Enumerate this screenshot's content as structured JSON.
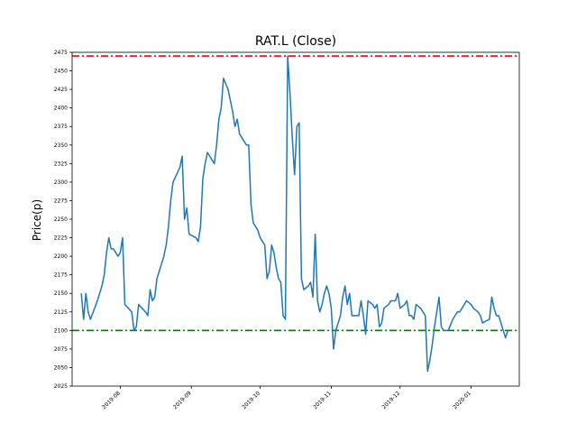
{
  "chart_data": {
    "type": "line",
    "title": "RAT.L (Close)",
    "xlabel": "",
    "ylabel": "Price(p)",
    "xlim": [
      "2019-07-11",
      "2020-01-22"
    ],
    "ylim": [
      2025,
      2475
    ],
    "x_ticks": [
      "2019-08",
      "2019-09",
      "2019-10",
      "2019-11",
      "2019-12",
      "2020-01"
    ],
    "y_ticks": [
      2025,
      2050,
      2075,
      2100,
      2125,
      2150,
      2175,
      2200,
      2225,
      2250,
      2275,
      2300,
      2325,
      2350,
      2375,
      2400,
      2425,
      2450,
      2475
    ],
    "grid": false,
    "hlines": [
      {
        "value": 2470,
        "color": "#ff0000",
        "style": "dashdot"
      },
      {
        "value": 2100,
        "color": "#008000",
        "style": "dashdot"
      }
    ],
    "series": [
      {
        "color": "#1f77b4",
        "points": [
          [
            "2019-07-15",
            2150
          ],
          [
            "2019-07-16",
            2115
          ],
          [
            "2019-07-17",
            2150
          ],
          [
            "2019-07-18",
            2125
          ],
          [
            "2019-07-19",
            2115
          ],
          [
            "2019-07-22",
            2140
          ],
          [
            "2019-07-23",
            2150
          ],
          [
            "2019-07-24",
            2160
          ],
          [
            "2019-07-25",
            2175
          ],
          [
            "2019-07-26",
            2205
          ],
          [
            "2019-07-27",
            2225
          ],
          [
            "2019-07-28",
            2210
          ],
          [
            "2019-07-29",
            2210
          ],
          [
            "2019-07-30",
            2205
          ],
          [
            "2019-07-31",
            2200
          ],
          [
            "2019-08-01",
            2205
          ],
          [
            "2019-08-02",
            2225
          ],
          [
            "2019-08-03",
            2135
          ],
          [
            "2019-08-06",
            2125
          ],
          [
            "2019-08-07",
            2100
          ],
          [
            "2019-08-08",
            2105
          ],
          [
            "2019-08-09",
            2135
          ],
          [
            "2019-08-12",
            2125
          ],
          [
            "2019-08-13",
            2120
          ],
          [
            "2019-08-14",
            2155
          ],
          [
            "2019-08-15",
            2140
          ],
          [
            "2019-08-16",
            2145
          ],
          [
            "2019-08-17",
            2170
          ],
          [
            "2019-08-19",
            2190
          ],
          [
            "2019-08-20",
            2200
          ],
          [
            "2019-08-21",
            2215
          ],
          [
            "2019-08-22",
            2240
          ],
          [
            "2019-08-23",
            2275
          ],
          [
            "2019-08-24",
            2300
          ],
          [
            "2019-08-27",
            2320
          ],
          [
            "2019-08-28",
            2335
          ],
          [
            "2019-08-29",
            2250
          ],
          [
            "2019-08-30",
            2265
          ],
          [
            "2019-08-31",
            2230
          ],
          [
            "2019-09-03",
            2225
          ],
          [
            "2019-09-04",
            2220
          ],
          [
            "2019-09-05",
            2240
          ],
          [
            "2019-09-06",
            2305
          ],
          [
            "2019-09-07",
            2325
          ],
          [
            "2019-09-08",
            2340
          ],
          [
            "2019-09-10",
            2330
          ],
          [
            "2019-09-11",
            2325
          ],
          [
            "2019-09-12",
            2350
          ],
          [
            "2019-09-13",
            2385
          ],
          [
            "2019-09-14",
            2400
          ],
          [
            "2019-09-15",
            2440
          ],
          [
            "2019-09-17",
            2425
          ],
          [
            "2019-09-18",
            2410
          ],
          [
            "2019-09-19",
            2395
          ],
          [
            "2019-09-20",
            2375
          ],
          [
            "2019-09-21",
            2385
          ],
          [
            "2019-09-22",
            2365
          ],
          [
            "2019-09-24",
            2355
          ],
          [
            "2019-09-25",
            2350
          ],
          [
            "2019-09-26",
            2350
          ],
          [
            "2019-09-27",
            2270
          ],
          [
            "2019-09-28",
            2245
          ],
          [
            "2019-09-30",
            2235
          ],
          [
            "2019-10-01",
            2225
          ],
          [
            "2019-10-02",
            2220
          ],
          [
            "2019-10-03",
            2215
          ],
          [
            "2019-10-04",
            2170
          ],
          [
            "2019-10-05",
            2180
          ],
          [
            "2019-10-06",
            2215
          ],
          [
            "2019-10-07",
            2205
          ],
          [
            "2019-10-08",
            2185
          ],
          [
            "2019-10-09",
            2170
          ],
          [
            "2019-10-10",
            2165
          ],
          [
            "2019-10-11",
            2120
          ],
          [
            "2019-10-12",
            2115
          ],
          [
            "2019-10-13",
            2470
          ],
          [
            "2019-10-14",
            2420
          ],
          [
            "2019-10-15",
            2360
          ],
          [
            "2019-10-16",
            2310
          ],
          [
            "2019-10-17",
            2375
          ],
          [
            "2019-10-18",
            2380
          ],
          [
            "2019-10-19",
            2170
          ],
          [
            "2019-10-20",
            2155
          ],
          [
            "2019-10-22",
            2160
          ],
          [
            "2019-10-23",
            2165
          ],
          [
            "2019-10-24",
            2145
          ],
          [
            "2019-10-25",
            2230
          ],
          [
            "2019-10-26",
            2140
          ],
          [
            "2019-10-27",
            2125
          ],
          [
            "2019-10-28",
            2135
          ],
          [
            "2019-10-29",
            2150
          ],
          [
            "2019-10-30",
            2160
          ],
          [
            "2019-10-31",
            2150
          ],
          [
            "2019-11-01",
            2130
          ],
          [
            "2019-11-02",
            2075
          ],
          [
            "2019-11-03",
            2100
          ],
          [
            "2019-11-05",
            2120
          ],
          [
            "2019-11-06",
            2145
          ],
          [
            "2019-11-07",
            2160
          ],
          [
            "2019-11-08",
            2135
          ],
          [
            "2019-11-09",
            2150
          ],
          [
            "2019-11-10",
            2120
          ],
          [
            "2019-11-12",
            2120
          ],
          [
            "2019-11-13",
            2120
          ],
          [
            "2019-11-14",
            2140
          ],
          [
            "2019-11-15",
            2120
          ],
          [
            "2019-11-16",
            2095
          ],
          [
            "2019-11-17",
            2140
          ],
          [
            "2019-11-19",
            2135
          ],
          [
            "2019-11-20",
            2130
          ],
          [
            "2019-11-21",
            2135
          ],
          [
            "2019-11-22",
            2105
          ],
          [
            "2019-11-23",
            2110
          ],
          [
            "2019-11-24",
            2130
          ],
          [
            "2019-11-26",
            2135
          ],
          [
            "2019-11-27",
            2140
          ],
          [
            "2019-11-28",
            2140
          ],
          [
            "2019-11-29",
            2140
          ],
          [
            "2019-11-30",
            2150
          ],
          [
            "2019-12-01",
            2130
          ],
          [
            "2019-12-03",
            2135
          ],
          [
            "2019-12-04",
            2140
          ],
          [
            "2019-12-05",
            2120
          ],
          [
            "2019-12-06",
            2120
          ],
          [
            "2019-12-07",
            2115
          ],
          [
            "2019-12-08",
            2135
          ],
          [
            "2019-12-10",
            2130
          ],
          [
            "2019-12-11",
            2125
          ],
          [
            "2019-12-12",
            2120
          ],
          [
            "2019-12-13",
            2045
          ],
          [
            "2019-12-14",
            2060
          ],
          [
            "2019-12-15",
            2080
          ],
          [
            "2019-12-16",
            2105
          ],
          [
            "2019-12-17",
            2125
          ],
          [
            "2019-12-18",
            2145
          ],
          [
            "2019-12-19",
            2105
          ],
          [
            "2019-12-20",
            2100
          ],
          [
            "2019-12-22",
            2100
          ],
          [
            "2019-12-24",
            2115
          ],
          [
            "2019-12-26",
            2125
          ],
          [
            "2019-12-27",
            2125
          ],
          [
            "2019-12-28",
            2130
          ],
          [
            "2019-12-30",
            2140
          ],
          [
            "2020-01-01",
            2135
          ],
          [
            "2020-01-02",
            2130
          ],
          [
            "2020-01-04",
            2125
          ],
          [
            "2020-01-05",
            2120
          ],
          [
            "2020-01-06",
            2110
          ],
          [
            "2020-01-07",
            2112
          ],
          [
            "2020-01-09",
            2115
          ],
          [
            "2020-01-10",
            2145
          ],
          [
            "2020-01-11",
            2130
          ],
          [
            "2020-01-12",
            2120
          ],
          [
            "2020-01-13",
            2120
          ],
          [
            "2020-01-14",
            2110
          ],
          [
            "2020-01-15",
            2100
          ],
          [
            "2020-01-16",
            2090
          ],
          [
            "2020-01-17",
            2100
          ]
        ]
      }
    ]
  }
}
